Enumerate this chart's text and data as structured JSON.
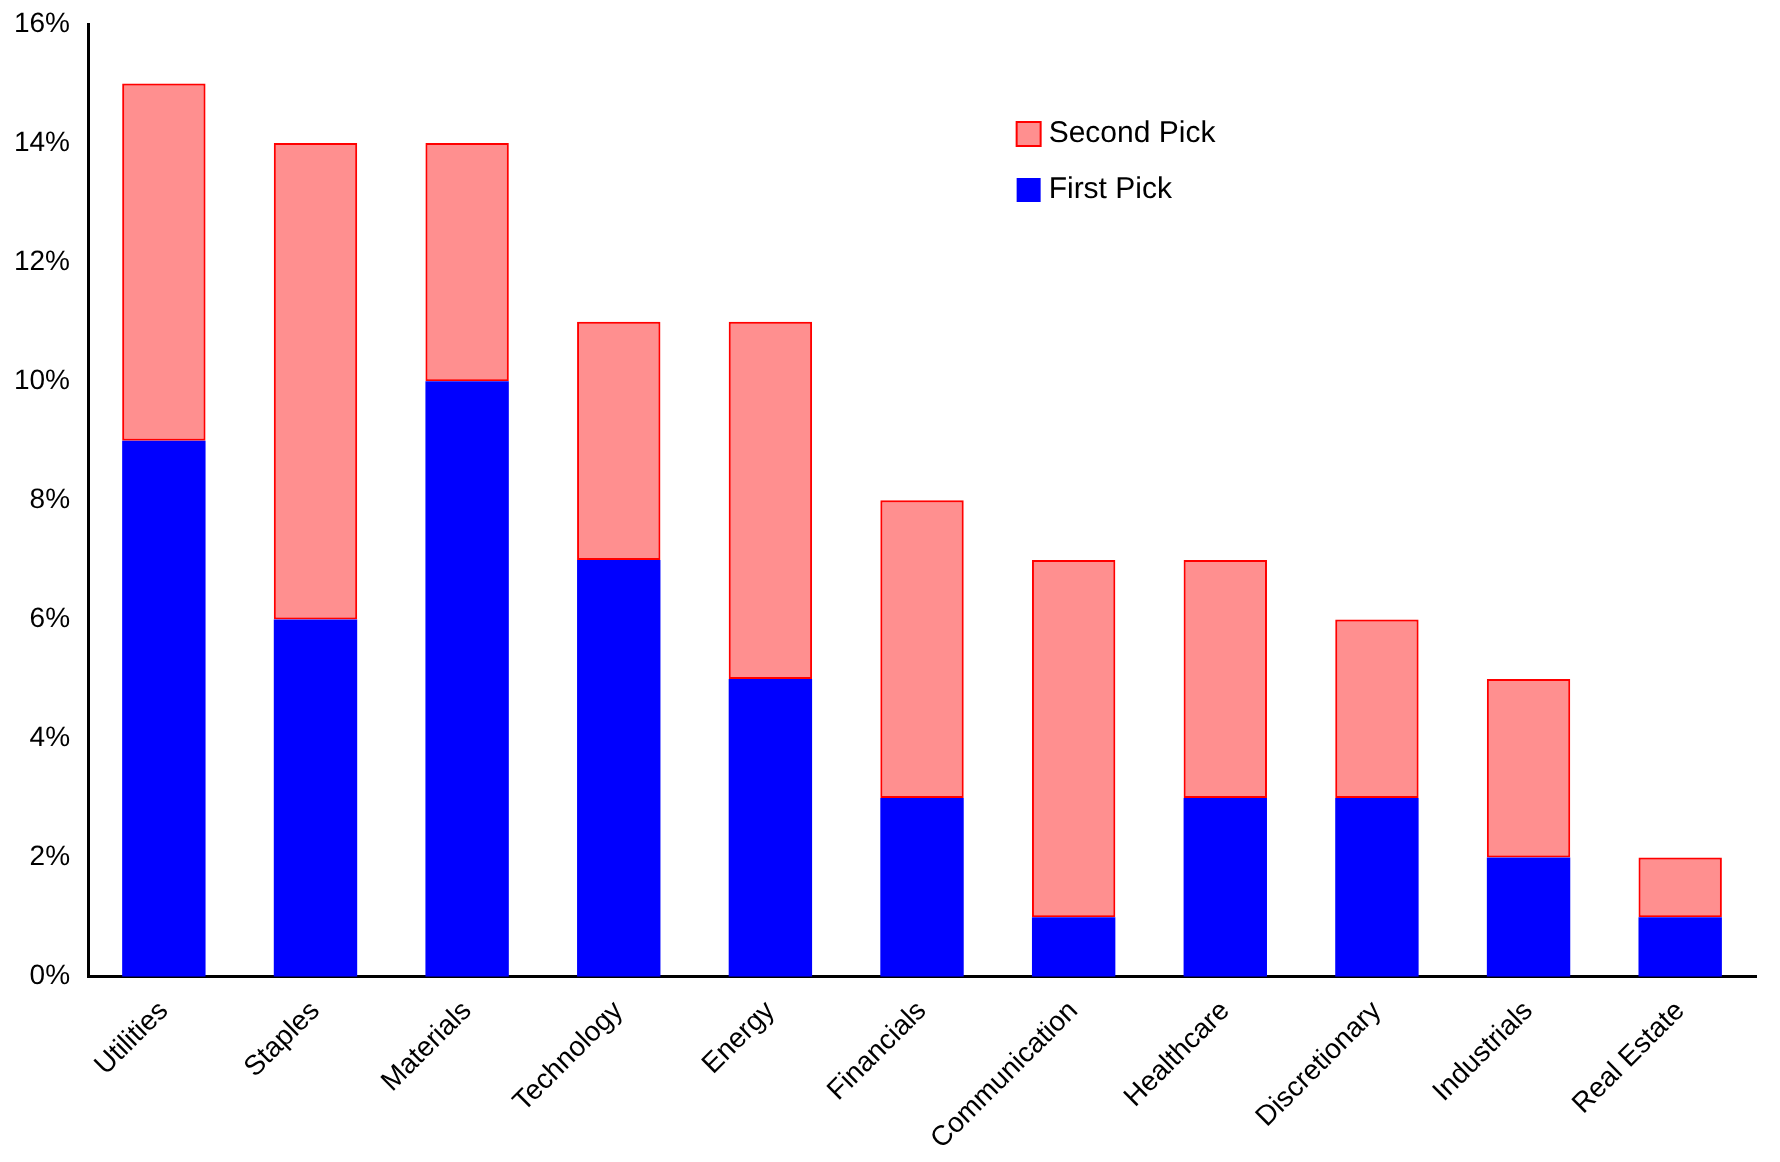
{
  "chart_data": {
    "type": "bar",
    "stacked": true,
    "categories": [
      "Utilities",
      "Staples",
      "Materials",
      "Technology",
      "Energy",
      "Financials",
      "Communication",
      "Healthcare",
      "Discretionary",
      "Industrials",
      "Real Estate"
    ],
    "series": [
      {
        "name": "First Pick",
        "color": "#0000ff",
        "values": [
          9,
          6,
          10,
          7,
          5,
          3,
          1,
          3,
          3,
          2,
          1
        ]
      },
      {
        "name": "Second Pick",
        "color": "#ff0000",
        "values": [
          6,
          8,
          4,
          4,
          6,
          5,
          6,
          4,
          3,
          3,
          1
        ]
      }
    ],
    "ylim": [
      0,
      16
    ],
    "yticks": [
      {
        "value": 0,
        "label": "0%"
      },
      {
        "value": 2,
        "label": "2%"
      },
      {
        "value": 4,
        "label": "4%"
      },
      {
        "value": 6,
        "label": "6%"
      },
      {
        "value": 8,
        "label": "8%"
      },
      {
        "value": 10,
        "label": "10%"
      },
      {
        "value": 12,
        "label": "12%"
      },
      {
        "value": 14,
        "label": "14%"
      },
      {
        "value": 16,
        "label": "16%"
      }
    ],
    "grid": false,
    "legend": "top"
  }
}
